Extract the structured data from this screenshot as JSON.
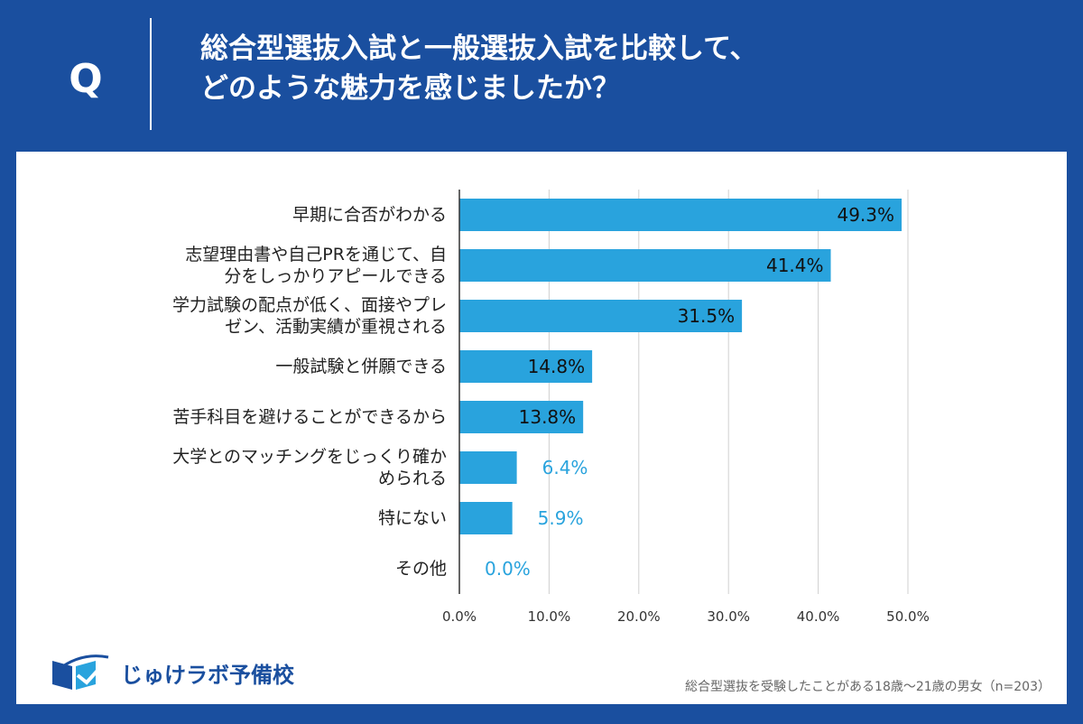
{
  "header": {
    "q_mark": "Q",
    "question_line1": "総合型選抜入試と一般選抜入試を比較して、",
    "question_line2": "どのような魅力を感じましたか？"
  },
  "colors": {
    "brand": "#1a4f9f",
    "bar": "#29a3dd",
    "outside_label": "#29a3dd",
    "grid": "#d0d0d0"
  },
  "chart_data": {
    "type": "bar",
    "orientation": "horizontal",
    "title": "",
    "xlabel": "",
    "ylabel": "",
    "xlim": [
      0,
      50
    ],
    "ticks": [
      0,
      10,
      20,
      30,
      40,
      50
    ],
    "tick_labels": [
      "0.0%",
      "10.0%",
      "20.0%",
      "30.0%",
      "40.0%",
      "50.0%"
    ],
    "categories": [
      [
        "早期に合否がわかる"
      ],
      [
        "志望理由書や自己PRを通じて、自",
        "分をしっかりアピールできる"
      ],
      [
        "学力試験の配点が低く、面接やプレ",
        "ゼン、活動実績が重視される"
      ],
      [
        "一般試験と併願できる"
      ],
      [
        "苦手科目を避けることができるから"
      ],
      [
        "大学とのマッチングをじっくり確か",
        "められる"
      ],
      [
        "特にない"
      ],
      [
        "その他"
      ]
    ],
    "values": [
      49.3,
      41.4,
      31.5,
      14.8,
      13.8,
      6.4,
      5.9,
      0.0
    ],
    "value_labels": [
      "49.3%",
      "41.4%",
      "31.5%",
      "14.8%",
      "13.8%",
      "6.4%",
      "5.9%",
      "0.0%"
    ],
    "grid": true
  },
  "footer": {
    "logo_text": "じゅけラボ予備校",
    "note": "総合型選抜を受験したことがある18歳～21歳の男女（n=203）"
  }
}
